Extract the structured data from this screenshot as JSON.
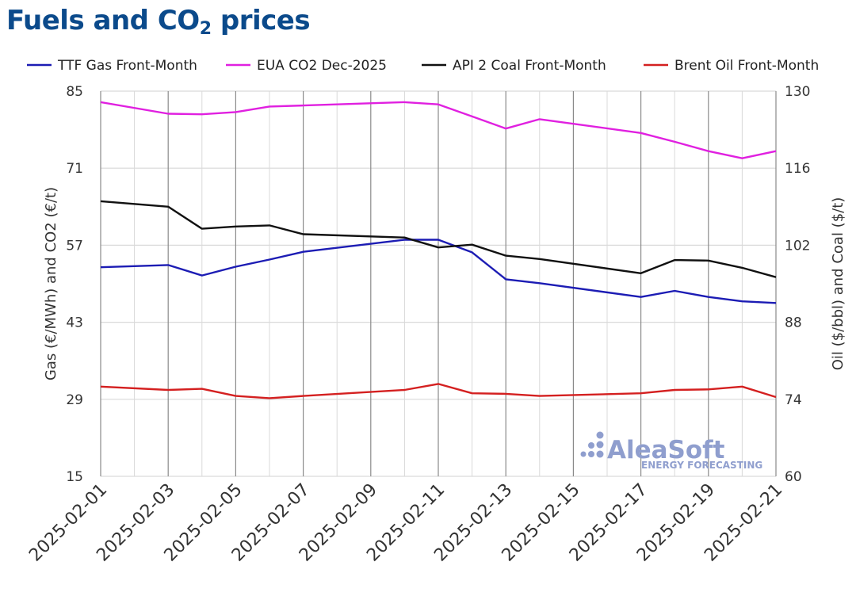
{
  "title_main": "Fuels and CO",
  "title_sub": "2",
  "title_tail": " prices",
  "watermark": {
    "brand": "AleaSoft",
    "tagline": "ENERGY FORECASTING"
  },
  "chart_data": {
    "type": "line",
    "x": [
      "2025-02-01",
      "2025-02-03",
      "2025-02-04",
      "2025-02-05",
      "2025-02-06",
      "2025-02-07",
      "2025-02-10",
      "2025-02-11",
      "2025-02-12",
      "2025-02-13",
      "2025-02-14",
      "2025-02-17",
      "2025-02-18",
      "2025-02-19",
      "2025-02-20",
      "2025-02-21"
    ],
    "xticks": [
      "2025-02-01",
      "2025-02-03",
      "2025-02-05",
      "2025-02-07",
      "2025-02-09",
      "2025-02-11",
      "2025-02-13",
      "2025-02-15",
      "2025-02-17",
      "2025-02-19",
      "2025-02-21"
    ],
    "xlim": [
      "2025-02-01",
      "2025-02-21"
    ],
    "y_left": {
      "label": "Gas (€/MWh) and CO2 (€/t)",
      "lim": [
        15,
        85
      ],
      "ticks": [
        15,
        29,
        43,
        57,
        71,
        85
      ]
    },
    "y_right": {
      "label": "Oil ($/bbl) and Coal ($/t)",
      "lim": [
        60,
        130
      ],
      "ticks": [
        60,
        74,
        88,
        102,
        116,
        130
      ]
    },
    "legend_position": "top",
    "series": [
      {
        "name": "TTF Gas Front-Month",
        "axis": "left",
        "color": "#1c1cb4",
        "points": [
          [
            "2025-02-01",
            53.0
          ],
          [
            "2025-02-03",
            53.4
          ],
          [
            "2025-02-04",
            51.5
          ],
          [
            "2025-02-05",
            53.1
          ],
          [
            "2025-02-06",
            54.4
          ],
          [
            "2025-02-07",
            55.8
          ],
          [
            "2025-02-10",
            58.0
          ],
          [
            "2025-02-11",
            58.0
          ],
          [
            "2025-02-12",
            55.7
          ],
          [
            "2025-02-13",
            50.8
          ],
          [
            "2025-02-14",
            50.1
          ],
          [
            "2025-02-17",
            47.6
          ],
          [
            "2025-02-18",
            48.7
          ],
          [
            "2025-02-19",
            47.6
          ],
          [
            "2025-02-20",
            46.8
          ],
          [
            "2025-02-21",
            46.5
          ]
        ]
      },
      {
        "name": "EUA CO2 Dec-2025",
        "axis": "left",
        "color": "#e020e0",
        "points": [
          [
            "2025-02-01",
            83.0
          ],
          [
            "2025-02-03",
            80.9
          ],
          [
            "2025-02-04",
            80.8
          ],
          [
            "2025-02-05",
            81.2
          ],
          [
            "2025-02-06",
            82.2
          ],
          [
            "2025-02-07",
            82.4
          ],
          [
            "2025-02-10",
            83.0
          ],
          [
            "2025-02-11",
            82.6
          ],
          [
            "2025-02-12",
            80.4
          ],
          [
            "2025-02-13",
            78.2
          ],
          [
            "2025-02-14",
            79.9
          ],
          [
            "2025-02-17",
            77.4
          ],
          [
            "2025-02-18",
            75.8
          ],
          [
            "2025-02-19",
            74.1
          ],
          [
            "2025-02-20",
            72.8
          ],
          [
            "2025-02-21",
            74.1
          ]
        ]
      },
      {
        "name": "API 2 Coal Front-Month",
        "axis": "right",
        "color": "#111111",
        "points": [
          [
            "2025-02-01",
            110.0
          ],
          [
            "2025-02-03",
            109.0
          ],
          [
            "2025-02-04",
            105.0
          ],
          [
            "2025-02-05",
            105.4
          ],
          [
            "2025-02-06",
            105.6
          ],
          [
            "2025-02-07",
            104.0
          ],
          [
            "2025-02-10",
            103.4
          ],
          [
            "2025-02-11",
            101.6
          ],
          [
            "2025-02-12",
            102.1
          ],
          [
            "2025-02-13",
            100.1
          ],
          [
            "2025-02-14",
            99.5
          ],
          [
            "2025-02-17",
            96.9
          ],
          [
            "2025-02-18",
            99.3
          ],
          [
            "2025-02-19",
            99.2
          ],
          [
            "2025-02-20",
            97.9
          ],
          [
            "2025-02-21",
            96.2
          ]
        ]
      },
      {
        "name": "Brent Oil Front-Month",
        "axis": "right",
        "color": "#d42020",
        "points": [
          [
            "2025-02-01",
            76.3
          ],
          [
            "2025-02-03",
            75.7
          ],
          [
            "2025-02-04",
            75.9
          ],
          [
            "2025-02-05",
            74.6
          ],
          [
            "2025-02-06",
            74.2
          ],
          [
            "2025-02-07",
            74.6
          ],
          [
            "2025-02-10",
            75.7
          ],
          [
            "2025-02-11",
            76.8
          ],
          [
            "2025-02-12",
            75.1
          ],
          [
            "2025-02-13",
            75.0
          ],
          [
            "2025-02-14",
            74.6
          ],
          [
            "2025-02-17",
            75.1
          ],
          [
            "2025-02-18",
            75.7
          ],
          [
            "2025-02-19",
            75.8
          ],
          [
            "2025-02-20",
            76.3
          ],
          [
            "2025-02-21",
            74.4
          ]
        ]
      }
    ]
  }
}
